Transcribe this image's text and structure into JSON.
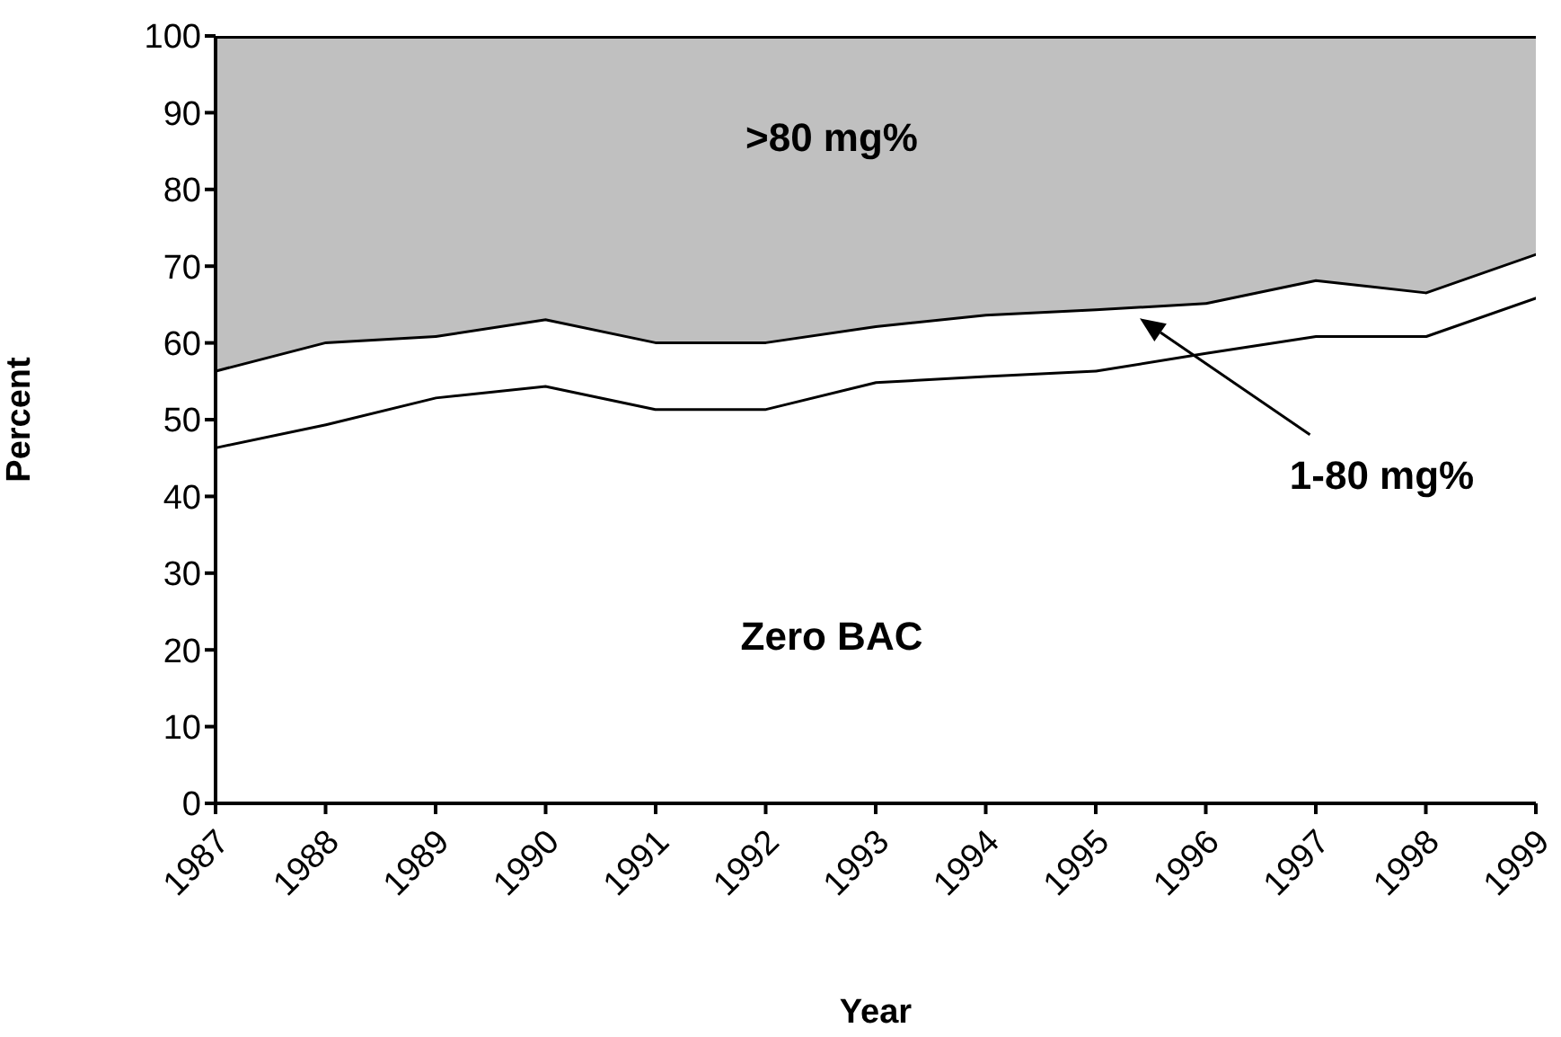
{
  "chart_data": {
    "type": "area",
    "stacked": true,
    "xlabel": "Year",
    "ylabel": "Percent",
    "x": [
      1987,
      1988,
      1989,
      1990,
      1991,
      1992,
      1993,
      1994,
      1995,
      1996,
      1997,
      1998,
      1999
    ],
    "xlim": [
      1987,
      1999
    ],
    "xticks": [
      1987,
      1988,
      1989,
      1990,
      1991,
      1992,
      1993,
      1994,
      1995,
      1996,
      1997,
      1998,
      1999
    ],
    "ylim": [
      0,
      100
    ],
    "yticks": [
      0,
      10,
      20,
      30,
      40,
      50,
      60,
      70,
      80,
      90,
      100
    ],
    "series": [
      {
        "name": "Zero BAC",
        "color": "#ffffff",
        "values": [
          46.5,
          49.5,
          53,
          54.5,
          51.5,
          51.5,
          55,
          55.8,
          56.5,
          58.8,
          61,
          61,
          66
        ]
      },
      {
        "name": "1-80 mg%",
        "color": "#ffffff",
        "values": [
          10,
          10.7,
          8,
          8.7,
          8.7,
          8.7,
          7.3,
          8,
          8,
          6.5,
          7.3,
          5.7,
          5.7
        ]
      },
      {
        "name": ">80 mg%",
        "color": "#c0c0c0",
        "values": [
          43.5,
          39.8,
          39,
          36.8,
          39.8,
          39.8,
          37.7,
          36.2,
          35.5,
          34.7,
          31.7,
          33.3,
          28.3
        ]
      }
    ]
  }
}
